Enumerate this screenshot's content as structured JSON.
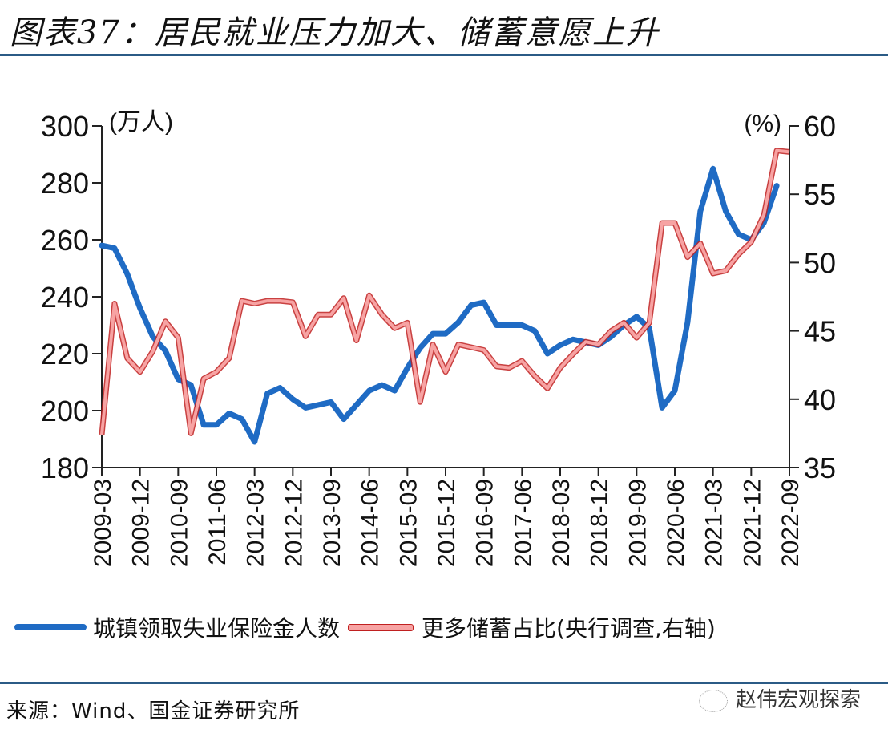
{
  "header": {
    "title": "图表37：居民就业压力加大、储蓄意愿上升"
  },
  "footer": {
    "source": "来源：Wind、国金证券研究所",
    "watermark": "赵伟宏观探索"
  },
  "colors": {
    "series_blue": "#1f6bc4",
    "series_red_fill": "#f7a3a3",
    "series_red_edge": "#c02020",
    "rule": "#2b5b86"
  },
  "chart_data": {
    "type": "line",
    "title": "居民就业压力加大、储蓄意愿上升",
    "left_axis": {
      "unit_label": "(万人)",
      "ylim": [
        180,
        300
      ],
      "ticks": [
        "180",
        "200",
        "220",
        "240",
        "260",
        "280",
        "300"
      ]
    },
    "right_axis": {
      "unit_label": "(%)",
      "ylim": [
        35,
        60
      ],
      "ticks": [
        "35",
        "40",
        "45",
        "50",
        "55",
        "60"
      ]
    },
    "x_tick_labels": [
      "2009-03",
      "2009-12",
      "2010-09",
      "2011-06",
      "2012-03",
      "2012-12",
      "2013-09",
      "2014-06",
      "2015-03",
      "2015-12",
      "2016-09",
      "2017-06",
      "2018-03",
      "2018-12",
      "2019-09",
      "2020-06",
      "2021-03",
      "2021-12",
      "2022-09"
    ],
    "x_start": "2009-03",
    "x_count": 55,
    "legend_position": "bottom",
    "series": [
      {
        "name": "城镇领取失业保险金人数",
        "axis": "left",
        "values": [
          258,
          257,
          248,
          236,
          226,
          221,
          211,
          209,
          195,
          195,
          199,
          197,
          189,
          206,
          208,
          204,
          201,
          202,
          203,
          197,
          202,
          207,
          209,
          207,
          215,
          222,
          227,
          227,
          231,
          237,
          238,
          230,
          230,
          230,
          228,
          220,
          223,
          225,
          224,
          223,
          226,
          230,
          233,
          229,
          201,
          207,
          231,
          270,
          285,
          270,
          262,
          260,
          266,
          279
        ]
      },
      {
        "name": "更多储蓄占比(央行调查,右轴)",
        "axis": "right",
        "values": [
          37.4,
          47,
          43,
          42,
          43.5,
          45.7,
          44.5,
          37.5,
          41.5,
          42,
          43,
          47.2,
          47,
          47.2,
          47.2,
          47.1,
          44.6,
          46.2,
          46.2,
          47.4,
          44.3,
          47.6,
          46.2,
          45.2,
          45.6,
          39.8,
          44,
          42,
          44,
          43.8,
          43.6,
          42.4,
          42.3,
          42.8,
          41.7,
          40.8,
          42.3,
          43.3,
          44.2,
          44,
          45,
          45.6,
          44.5,
          45.6,
          52.9,
          52.9,
          50.4,
          51.4,
          49.2,
          49.4,
          50.6,
          51.5,
          53.5,
          58.2,
          58.1
        ]
      }
    ]
  }
}
